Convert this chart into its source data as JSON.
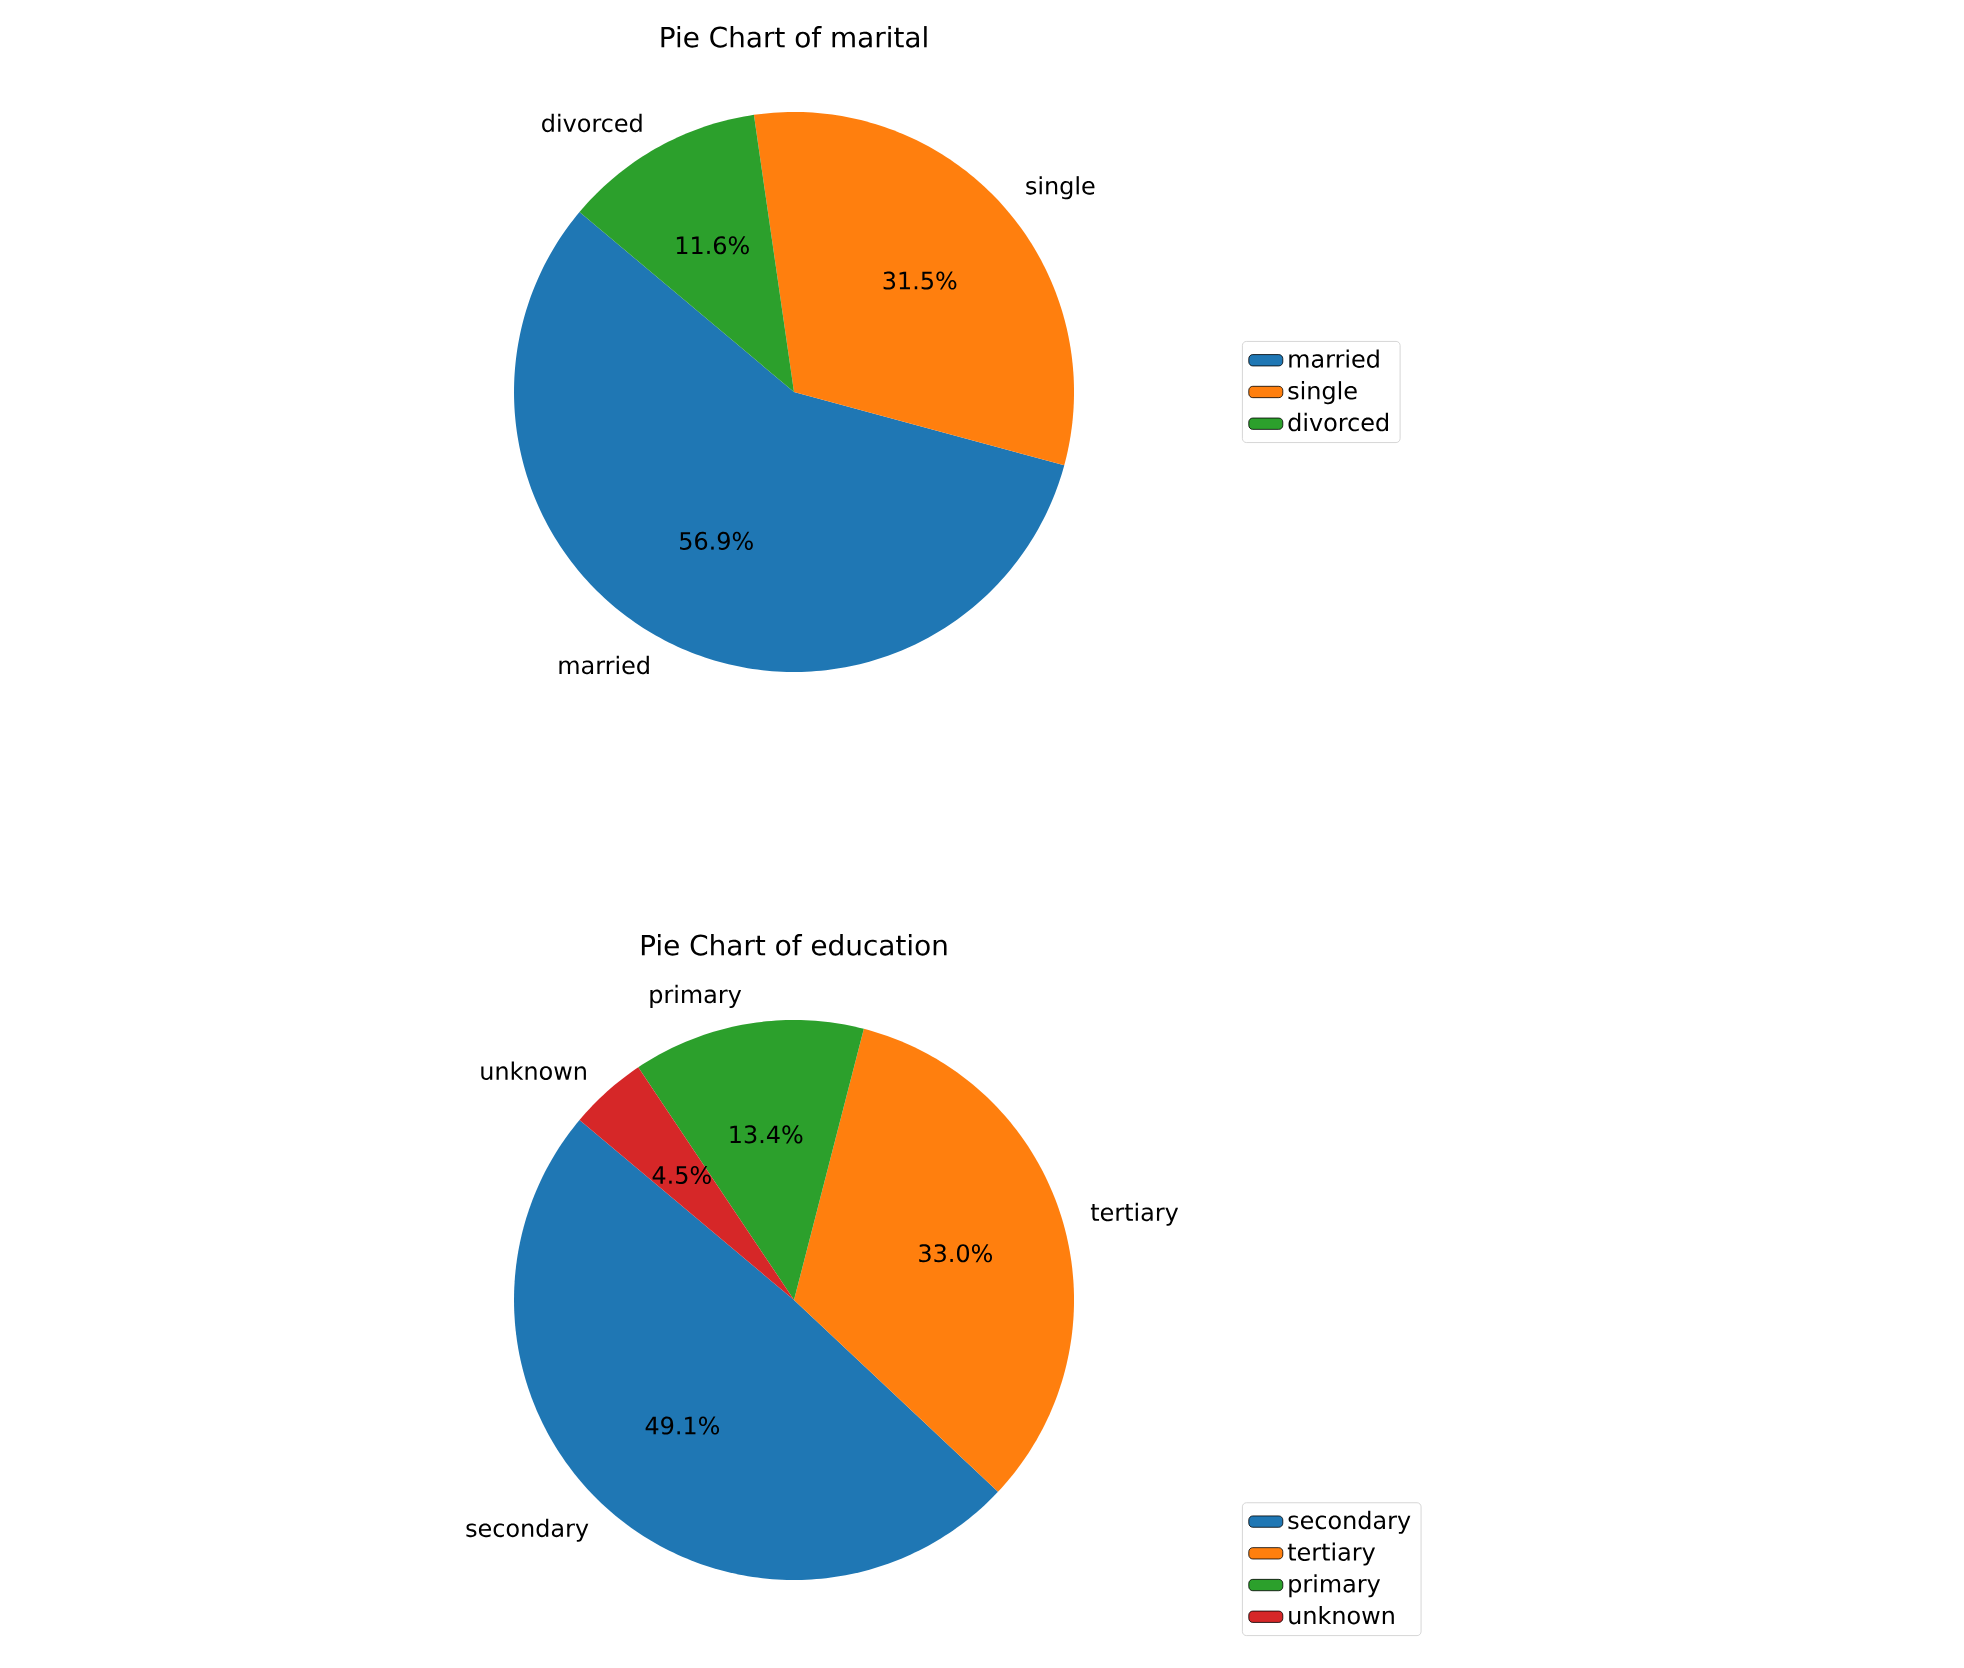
{
  "chart_data": [
    {
      "type": "pie",
      "title": "Pie Chart of marital",
      "categories": [
        "married",
        "single",
        "divorced"
      ],
      "values": [
        56.9,
        31.5,
        11.6
      ],
      "colors": [
        "#1f77b4",
        "#ff7f0e",
        "#2ca02c"
      ],
      "value_labels": [
        "56.9%",
        "31.5%",
        "11.6%"
      ],
      "legend": "right"
    },
    {
      "type": "pie",
      "title": "Pie Chart of education",
      "categories": [
        "secondary",
        "tertiary",
        "primary",
        "unknown"
      ],
      "values": [
        49.1,
        33.0,
        13.4,
        4.5
      ],
      "colors": [
        "#1f77b4",
        "#ff7f0e",
        "#2ca02c",
        "#d62728"
      ],
      "value_labels": [
        "49.1%",
        "33.0%",
        "13.4%",
        "4.5%"
      ],
      "legend": "bottom right"
    }
  ]
}
